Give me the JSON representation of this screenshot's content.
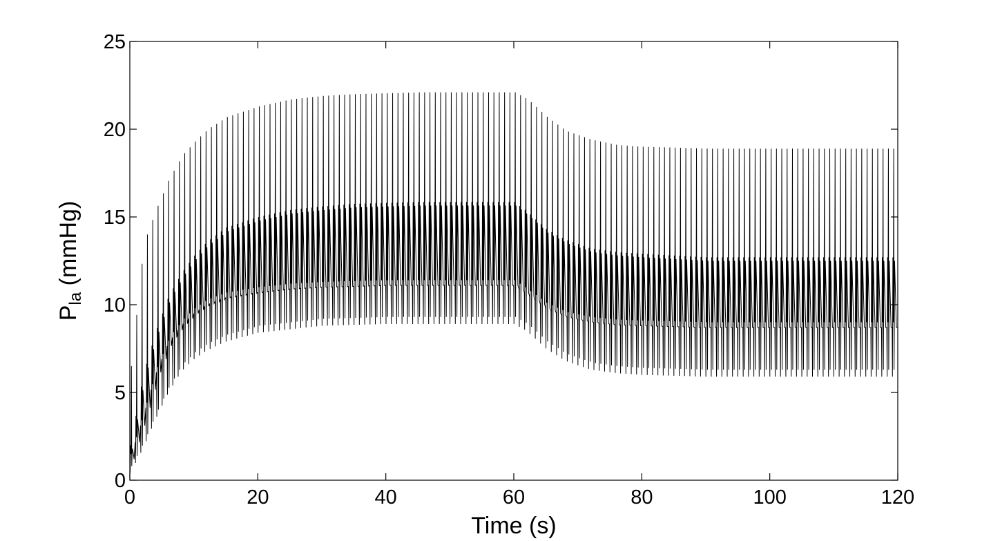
{
  "chart_data": {
    "type": "line",
    "title": "",
    "xlabel": "Time (s)",
    "ylabel": {
      "symbol": "P",
      "subscript": "la",
      "unit": "(mmHg)"
    },
    "xlim": [
      0,
      120
    ],
    "ylim": [
      0,
      25
    ],
    "xticks": [
      0,
      20,
      40,
      60,
      80,
      100,
      120
    ],
    "yticks": [
      0,
      5,
      10,
      15,
      20,
      25
    ],
    "grid": false,
    "line_color": "#000000",
    "series": [
      {
        "description_points": {
          "beat_period_s": 0.833,
          "phase_times_s": [
            0,
            60,
            120
          ],
          "envelope_samples": {
            "t": [
              0,
              2,
              4,
              6,
              8,
              10,
              12,
              15,
              20,
              25,
              30,
              35,
              40,
              45,
              50,
              55,
              60,
              62,
              65,
              68,
              72,
              76,
              80,
              85,
              90,
              100,
              110,
              120
            ],
            "peak_max": [
              6.5,
              13.5,
              15.5,
              17.2,
              18.5,
              19.3,
              20.0,
              20.7,
              21.3,
              21.7,
              21.9,
              22.0,
              22.05,
              22.1,
              22.1,
              22.1,
              22.1,
              21.7,
              20.7,
              19.9,
              19.4,
              19.1,
              19.0,
              18.95,
              18.9,
              18.9,
              18.9,
              18.9
            ],
            "trough_min": [
              0.4,
              1.8,
              3.5,
              5.0,
              6.2,
              6.9,
              7.4,
              7.9,
              8.4,
              8.6,
              8.8,
              8.85,
              8.9,
              8.9,
              8.9,
              8.9,
              8.9,
              8.5,
              7.5,
              6.8,
              6.3,
              6.1,
              6.0,
              5.95,
              5.9,
              5.9,
              5.9,
              5.9
            ],
            "mid_upper": [
              2.0,
              6.0,
              8.5,
              10.5,
              11.8,
              12.8,
              13.6,
              14.4,
              15.0,
              15.4,
              15.6,
              15.75,
              15.8,
              15.85,
              15.85,
              15.85,
              15.85,
              15.3,
              14.3,
              13.7,
              13.2,
              13.0,
              12.9,
              12.8,
              12.7,
              12.7,
              12.7,
              12.7
            ],
            "mid_lower": [
              1.2,
              3.5,
              6.0,
              7.8,
              8.8,
              9.5,
              10.0,
              10.4,
              10.7,
              10.9,
              11.0,
              11.05,
              11.1,
              11.1,
              11.1,
              11.1,
              11.1,
              10.6,
              9.8,
              9.3,
              9.0,
              8.85,
              8.8,
              8.75,
              8.7,
              8.7,
              8.7,
              8.7
            ]
          }
        }
      }
    ]
  }
}
